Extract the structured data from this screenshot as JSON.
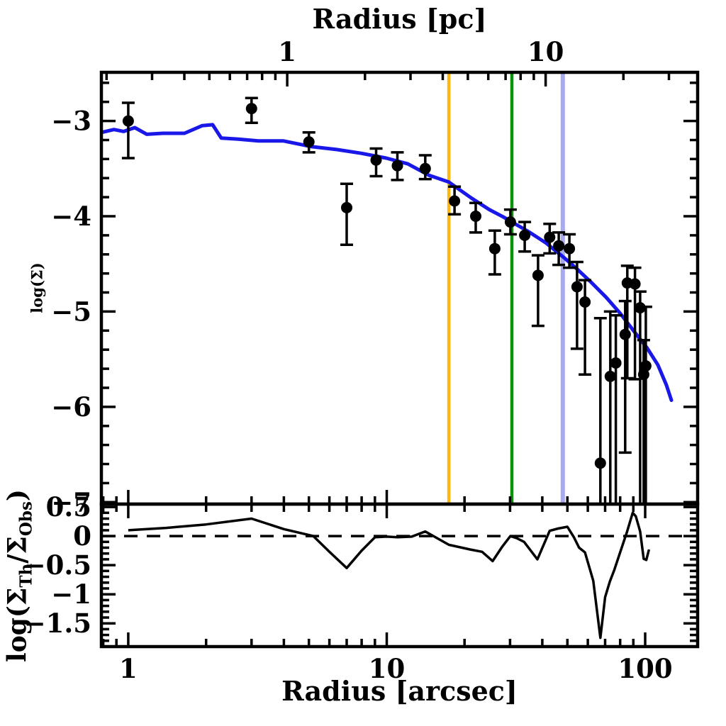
{
  "figure": {
    "titles": {
      "top_x": "Radius [pc]",
      "bottom_x": "Radius [arcsec]",
      "top_y": "log(Σ)",
      "bottom_y": {
        "prefix": "log(Σ",
        "sub1": "Th",
        "mid": "/Σ",
        "sub2": "Obs",
        "suffix": ")"
      }
    },
    "colors": {
      "model_curve": "#1a18e8",
      "marker_line_1": "#ffb60d",
      "marker_line_2": "#089408",
      "marker_line_3": "#a9a9ef",
      "data": "#000000",
      "background": "#ffffff"
    }
  },
  "chart_data": [
    {
      "type": "scatter",
      "panel": "top",
      "title": "",
      "xlabel_top": "Radius [pc]",
      "ylabel": "log(Σ)",
      "xscale": "log",
      "x_unit": "arcsec",
      "xlim": [
        0.787,
        159.6
      ],
      "ylim": [
        -7.02,
        -2.49
      ],
      "grid": false,
      "x_major_ticks": [
        1,
        10,
        100
      ],
      "x_minor_ticks": [
        0.8,
        0.9,
        2,
        3,
        4,
        5,
        6,
        7,
        8,
        9,
        20,
        30,
        40,
        50,
        60,
        70,
        80,
        90
      ],
      "top_axis": {
        "unit": "pc",
        "arcsec_per_pc": 4.12,
        "major_ticks": [
          1,
          10
        ],
        "major_labels": [
          "1",
          "10"
        ],
        "minor_ticks": [
          0.2,
          0.3,
          0.4,
          0.5,
          0.6,
          0.7,
          0.8,
          0.9,
          2,
          3,
          4,
          5,
          6,
          7,
          8,
          9,
          20,
          30
        ]
      },
      "y_major_ticks": [
        -3,
        -4,
        -5,
        -6,
        -7
      ],
      "y_major_labels": [
        "−3",
        "−4",
        "−5",
        "−6",
        "−7"
      ],
      "y_minor_ticks": [
        -2.6,
        -2.8,
        -3.2,
        -3.4,
        -3.6,
        -3.8,
        -4.2,
        -4.4,
        -4.6,
        -4.8,
        -5.2,
        -5.4,
        -5.6,
        -5.8,
        -6.2,
        -6.4,
        -6.6,
        -6.8
      ],
      "points": [
        {
          "x": 1.0,
          "y": -3.0,
          "err_up": 0.19,
          "err_down": 0.39
        },
        {
          "x": 3.0,
          "y": -2.87,
          "err_up": 0.11,
          "err_down": 0.15
        },
        {
          "x": 5.0,
          "y": -3.22,
          "err_up": 0.1,
          "err_down": 0.11
        },
        {
          "x": 7.0,
          "y": -3.91,
          "err_up": 0.25,
          "err_down": 0.39
        },
        {
          "x": 9.1,
          "y": -3.41,
          "err_up": 0.12,
          "err_down": 0.17
        },
        {
          "x": 11.0,
          "y": -3.47,
          "err_up": 0.14,
          "err_down": 0.15
        },
        {
          "x": 14.1,
          "y": -3.5,
          "err_up": 0.14,
          "err_down": 0.11
        },
        {
          "x": 18.3,
          "y": -3.84,
          "err_up": 0.15,
          "err_down": 0.14
        },
        {
          "x": 22.1,
          "y": -4.0,
          "err_up": 0.14,
          "err_down": 0.17
        },
        {
          "x": 26.2,
          "y": -4.34,
          "err_up": 0.19,
          "err_down": 0.27
        },
        {
          "x": 30.1,
          "y": -4.06,
          "err_up": 0.13,
          "err_down": 0.13
        },
        {
          "x": 34.2,
          "y": -4.2,
          "err_up": 0.14,
          "err_down": 0.17
        },
        {
          "x": 38.5,
          "y": -4.62,
          "err_up": 0.21,
          "err_down": 0.53
        },
        {
          "x": 42.7,
          "y": -4.22,
          "err_up": 0.14,
          "err_down": 0.17
        },
        {
          "x": 46.3,
          "y": -4.31,
          "err_up": 0.14,
          "err_down": 0.2
        },
        {
          "x": 50.9,
          "y": -4.34,
          "err_up": 0.15,
          "err_down": 0.2
        },
        {
          "x": 54.5,
          "y": -4.74,
          "err_up": 0.26,
          "err_down": 0.65
        },
        {
          "x": 58.5,
          "y": -4.9,
          "err_up": 0.23,
          "err_down": 0.76
        },
        {
          "x": 67.1,
          "y": -6.59,
          "err_up": 1.52,
          "err_down": 0.8
        },
        {
          "x": 73.3,
          "y": -5.68,
          "err_up": 0.68,
          "err_down": 1.6
        },
        {
          "x": 77.0,
          "y": -5.54,
          "err_up": 0.5,
          "err_down": 1.7
        },
        {
          "x": 83.7,
          "y": -5.24,
          "err_up": 0.35,
          "err_down": 1.24
        },
        {
          "x": 85.3,
          "y": -4.7,
          "err_up": 0.18,
          "err_down": 1.0
        },
        {
          "x": 91.3,
          "y": -4.71,
          "err_up": 0.17,
          "err_down": 1.0
        },
        {
          "x": 95.6,
          "y": -4.96,
          "err_up": 0.17,
          "err_down": 2.2
        },
        {
          "x": 98.7,
          "y": -5.66,
          "err_up": 0.36,
          "err_down": 1.6
        },
        {
          "x": 100.6,
          "y": -5.57,
          "err_up": 0.62,
          "err_down": 1.6
        }
      ],
      "model_curve": {
        "name": "theoretical-model",
        "color": "#1a18e8",
        "points": [
          [
            0.79,
            -3.12
          ],
          [
            0.88,
            -3.09
          ],
          [
            0.96,
            -3.11
          ],
          [
            1.06,
            -3.07
          ],
          [
            1.18,
            -3.14
          ],
          [
            1.36,
            -3.13
          ],
          [
            1.65,
            -3.13
          ],
          [
            1.93,
            -3.05
          ],
          [
            2.12,
            -3.04
          ],
          [
            2.29,
            -3.18
          ],
          [
            2.64,
            -3.19
          ],
          [
            3.19,
            -3.21
          ],
          [
            3.99,
            -3.21
          ],
          [
            5.13,
            -3.27
          ],
          [
            6.4,
            -3.3
          ],
          [
            8.0,
            -3.34
          ],
          [
            9.96,
            -3.39
          ],
          [
            12.06,
            -3.45
          ],
          [
            14.58,
            -3.57
          ],
          [
            17.36,
            -3.64
          ],
          [
            21.29,
            -3.81
          ],
          [
            24.93,
            -3.93
          ],
          [
            28.37,
            -4.01
          ],
          [
            30.5,
            -4.06
          ],
          [
            35.3,
            -4.16
          ],
          [
            41.3,
            -4.28
          ],
          [
            48.3,
            -4.43
          ],
          [
            54.8,
            -4.56
          ],
          [
            62.2,
            -4.7
          ],
          [
            70.6,
            -4.85
          ],
          [
            80.1,
            -5.02
          ],
          [
            90.7,
            -5.21
          ],
          [
            101.6,
            -5.38
          ],
          [
            112.0,
            -5.56
          ],
          [
            120.8,
            -5.77
          ],
          [
            126.3,
            -5.93
          ]
        ]
      },
      "vlines": [
        {
          "x": 17.4,
          "color": "#ffb60d",
          "width": 4.5
        },
        {
          "x": 30.5,
          "color": "#089408",
          "width": 4.5
        },
        {
          "x": 48.0,
          "color": "#a9a9ef",
          "width": 6
        }
      ]
    },
    {
      "type": "line",
      "panel": "bottom",
      "xlabel": "Radius [arcsec]",
      "ylabel": "log(Σ_Th/Σ_Obs)",
      "xscale": "log",
      "xlim": [
        0.787,
        159.6
      ],
      "ylim": [
        -1.9,
        0.55
      ],
      "grid": false,
      "x_major_ticks": [
        1,
        10,
        100
      ],
      "x_major_labels": [
        "1",
        "10",
        "100"
      ],
      "x_minor_ticks": [
        0.8,
        0.9,
        2,
        3,
        4,
        5,
        6,
        7,
        8,
        9,
        20,
        30,
        40,
        50,
        60,
        70,
        80,
        90
      ],
      "y_major_ticks": [
        0.5,
        0,
        -0.5,
        -1,
        -1.5
      ],
      "y_major_labels": [
        "0.5",
        "0",
        "−0.5",
        "−1",
        "−1.5"
      ],
      "y_minor_ticks": [
        0.4,
        0.3,
        0.2,
        0.1,
        -0.1,
        -0.2,
        -0.3,
        -0.4,
        -0.6,
        -0.7,
        -0.8,
        -0.9,
        -1.1,
        -1.2,
        -1.3,
        -1.4,
        -1.6,
        -1.7,
        -1.8
      ],
      "hline": {
        "y": 0,
        "style": "dashed"
      },
      "ratio_curve": {
        "name": "log-ratio-theory-over-observed",
        "color": "#000000",
        "points": [
          [
            1.0,
            0.1
          ],
          [
            1.4,
            0.14
          ],
          [
            2.0,
            0.2
          ],
          [
            3.0,
            0.3
          ],
          [
            4.0,
            0.12
          ],
          [
            5.2,
            0.0
          ],
          [
            6.0,
            -0.27
          ],
          [
            7.0,
            -0.55
          ],
          [
            8.0,
            -0.25
          ],
          [
            9.0,
            -0.02
          ],
          [
            10.0,
            -0.01
          ],
          [
            11.0,
            -0.02
          ],
          [
            12.5,
            -0.01
          ],
          [
            14.1,
            0.08
          ],
          [
            17.4,
            -0.15
          ],
          [
            21.0,
            -0.23
          ],
          [
            23.4,
            -0.27
          ],
          [
            25.7,
            -0.43
          ],
          [
            28.0,
            -0.18
          ],
          [
            30.1,
            0.0
          ],
          [
            32.0,
            -0.04
          ],
          [
            34.0,
            -0.1
          ],
          [
            38.3,
            -0.4
          ],
          [
            42.7,
            0.09
          ],
          [
            46.0,
            0.13
          ],
          [
            50.0,
            0.16
          ],
          [
            53.0,
            -0.02
          ],
          [
            55.5,
            -0.2
          ],
          [
            58.5,
            -0.28
          ],
          [
            63.0,
            -0.77
          ],
          [
            67.1,
            -1.75
          ],
          [
            70.0,
            -1.05
          ],
          [
            73.0,
            -0.78
          ],
          [
            76.0,
            -0.58
          ],
          [
            80.0,
            -0.28
          ],
          [
            85.0,
            0.07
          ],
          [
            89.5,
            0.4
          ],
          [
            92.0,
            0.34
          ],
          [
            95.6,
            0.08
          ],
          [
            98.7,
            -0.39
          ],
          [
            101.0,
            -0.41
          ],
          [
            103.5,
            -0.23
          ]
        ]
      }
    }
  ]
}
